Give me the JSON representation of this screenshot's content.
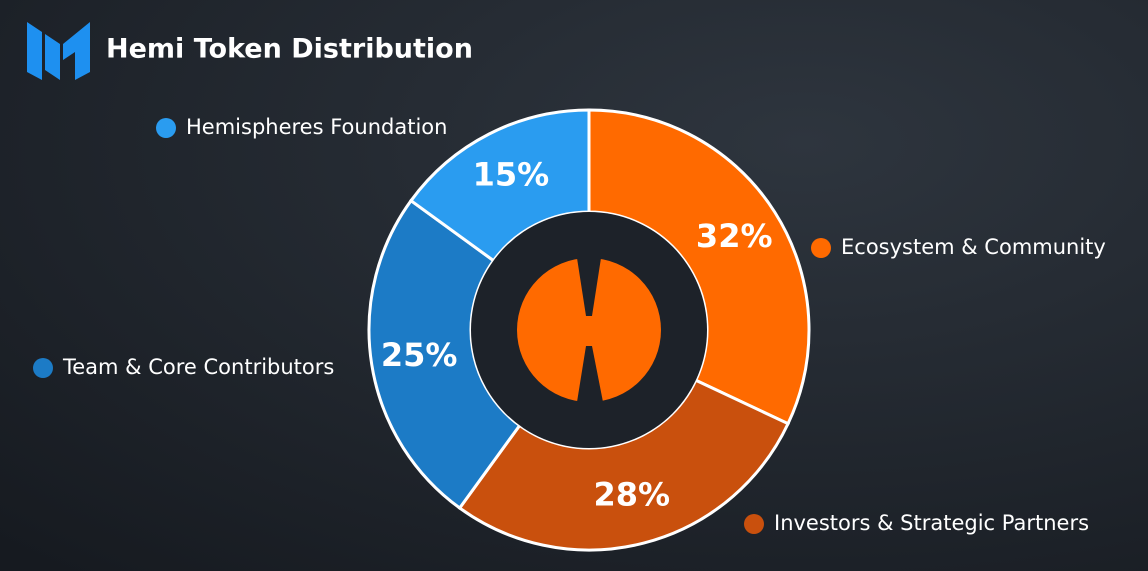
{
  "chart_data": {
    "type": "pie",
    "title": "Hemi Token Distribution",
    "categories": [
      "Ecosystem & Community",
      "Investors & Strategic Partners",
      "Team & Core Contributors",
      "Hemispheres Foundation"
    ],
    "values": [
      32,
      28,
      25,
      15
    ],
    "value_labels": [
      "32%",
      "28%",
      "25%",
      "15%"
    ],
    "colors": [
      "#ff6a00",
      "#c9500d",
      "#1c7bc6",
      "#2a9cf0"
    ],
    "donut": true
  }
}
